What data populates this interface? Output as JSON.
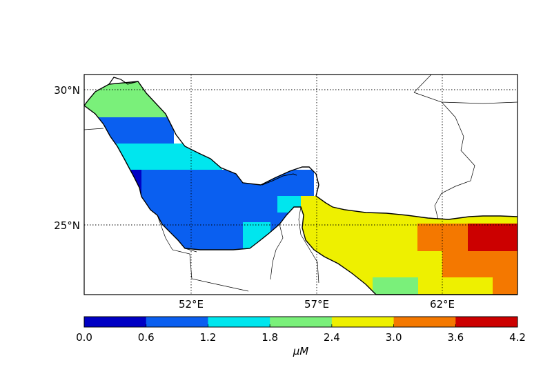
{
  "map": {
    "lat_labels": [
      "30°N",
      "25°N"
    ],
    "lon_labels": [
      "52°E",
      "57°E",
      "62°E"
    ]
  },
  "colorbar": {
    "unit": "μM",
    "ticks": [
      "0.0",
      "0.6",
      "1.2",
      "1.8",
      "2.4",
      "3.0",
      "3.6",
      "4.2"
    ],
    "colors": [
      "#0000c4",
      "#0a5ff0",
      "#00e6ee",
      "#7af07a",
      "#eef000",
      "#f47800",
      "#cc0000"
    ]
  }
}
